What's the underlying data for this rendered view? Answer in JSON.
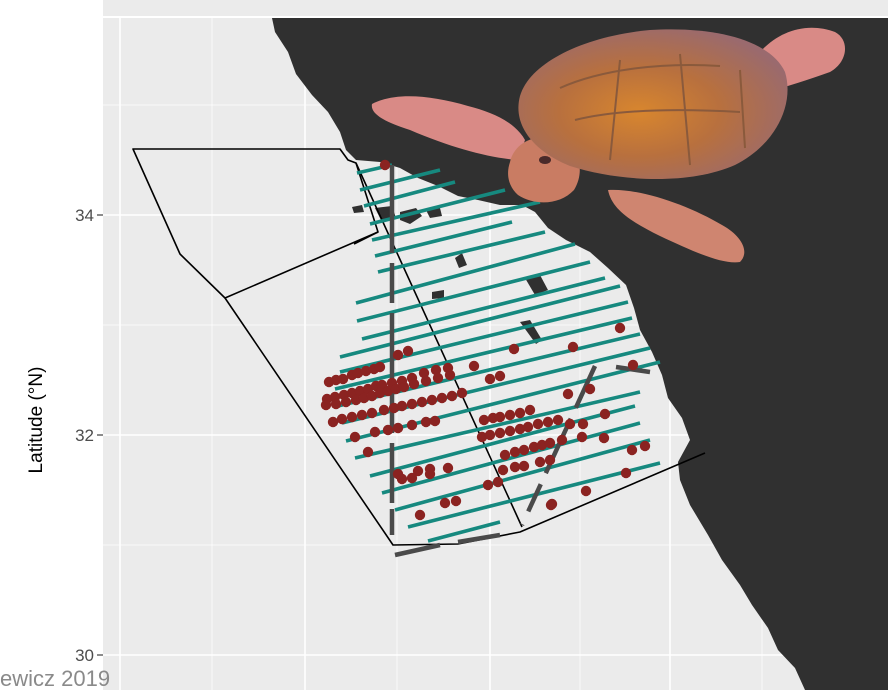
{
  "map": {
    "y_axis_title": "Latitude (°N)",
    "y_ticks": [
      "34",
      "32",
      "30"
    ],
    "credit": "ewicz 2019"
  },
  "colors": {
    "panel_background": "#ebebeb",
    "gridlines": "#ffffff",
    "land": "#303030",
    "survey_transects": "#16897f",
    "sightings": "#8b2321",
    "study_area_outline": "#000000",
    "boundary_line": "#4a4a4a",
    "turtle_shell": "#c7844a",
    "turtle_skin": "#d98a86"
  },
  "icons": [
    "loggerhead-sea-turtle-image"
  ]
}
